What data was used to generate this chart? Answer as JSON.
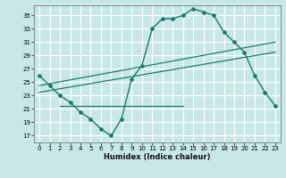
{
  "xlabel": "Humidex (Indice chaleur)",
  "bg_color": "#c8e8e8",
  "grid_color": "#ffffff",
  "line_color": "#1a7a6e",
  "xlim": [
    -0.5,
    23.5
  ],
  "ylim": [
    16,
    36.5
  ],
  "yticks": [
    17,
    19,
    21,
    23,
    25,
    27,
    29,
    31,
    33,
    35
  ],
  "xticks": [
    0,
    1,
    2,
    3,
    4,
    5,
    6,
    7,
    8,
    9,
    10,
    11,
    12,
    13,
    14,
    15,
    16,
    17,
    18,
    19,
    20,
    21,
    22,
    23
  ],
  "main_x": [
    0,
    1,
    2,
    3,
    4,
    5,
    6,
    7,
    8,
    9,
    10,
    11,
    12,
    13,
    14,
    15,
    16,
    17,
    18,
    19,
    20,
    21,
    22,
    23
  ],
  "main_y": [
    26.0,
    24.5,
    23.0,
    22.0,
    20.5,
    19.5,
    18.0,
    17.0,
    19.5,
    25.5,
    27.5,
    33.0,
    34.5,
    34.5,
    35.0,
    36.0,
    35.5,
    35.0,
    32.5,
    31.0,
    29.5,
    26.0,
    23.5,
    21.5
  ],
  "line1_x": [
    0,
    23
  ],
  "line1_y": [
    24.5,
    31.0
  ],
  "line2_x": [
    0,
    23
  ],
  "line2_y": [
    23.5,
    29.5
  ],
  "line3_x": [
    2,
    14
  ],
  "line3_y": [
    21.5,
    21.5
  ]
}
